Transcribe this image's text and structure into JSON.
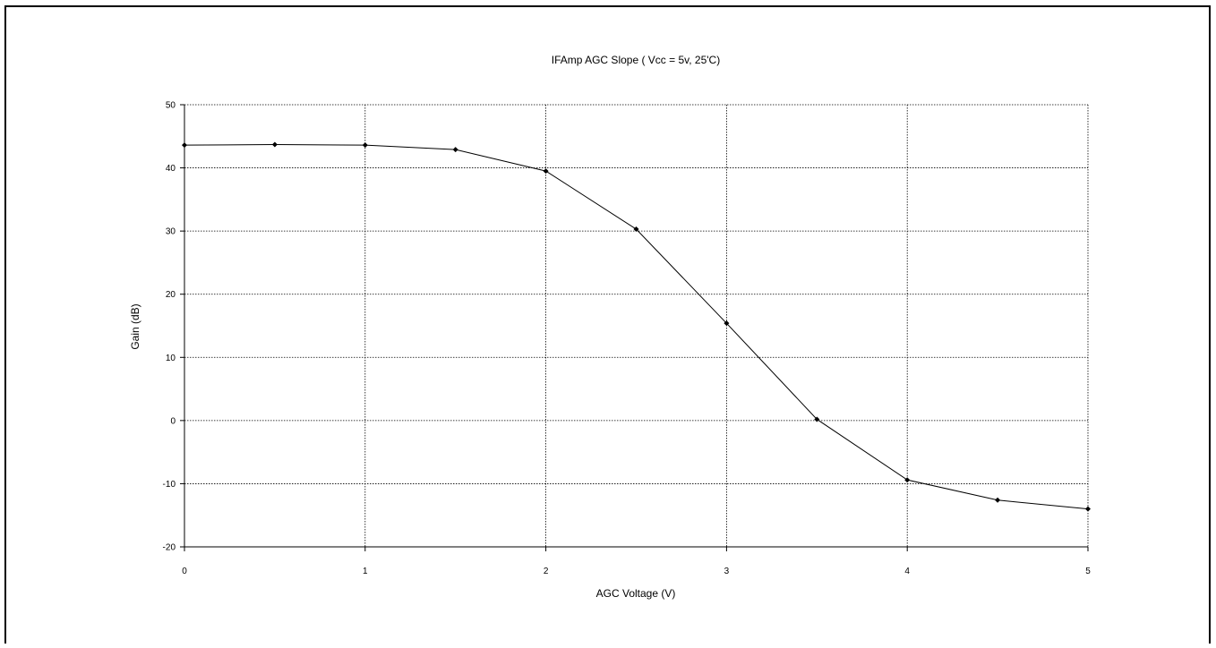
{
  "chart_data": {
    "type": "line",
    "title": "IFAmp AGC Slope ( Vcc = 5v, 25'C)",
    "xlabel": "AGC Voltage (V)",
    "ylabel": "Gain (dB)",
    "xlim": [
      0,
      5
    ],
    "ylim": [
      -20,
      50
    ],
    "xticks": [
      "0",
      "1",
      "2",
      "3",
      "4",
      "5"
    ],
    "yticks": [
      "-20",
      "-10",
      "0",
      "10",
      "20",
      "30",
      "40",
      "50"
    ],
    "grid": true,
    "legend": "none",
    "marker": "diamond",
    "line_color": "#000000",
    "series": [
      {
        "x": [
          0,
          0.5,
          1,
          1.5,
          2,
          2.5,
          3,
          3.5,
          4,
          4.5,
          5
        ],
        "y": [
          43.6,
          43.7,
          43.6,
          42.9,
          39.5,
          30.3,
          15.4,
          0.2,
          -9.4,
          -12.6,
          -14.0
        ]
      }
    ]
  }
}
